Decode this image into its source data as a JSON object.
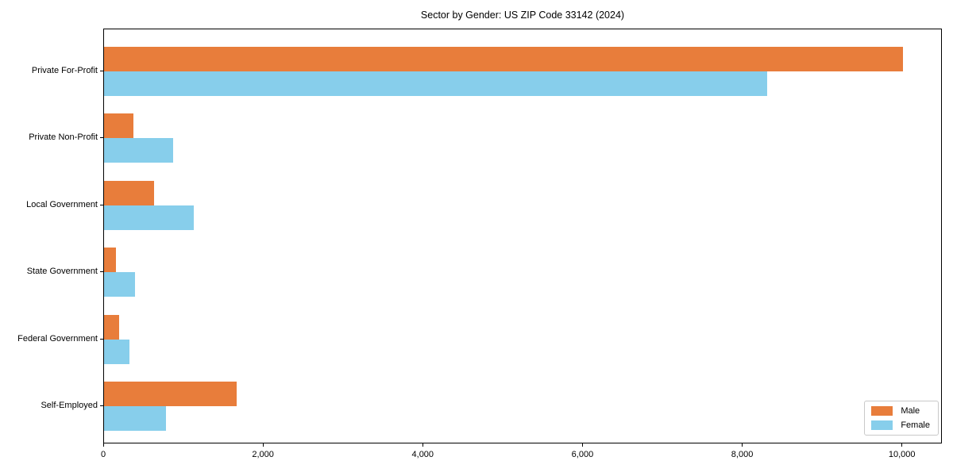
{
  "title": "Sector by Gender: US ZIP Code 33142 (2024)",
  "colors": {
    "male": "#e87d3b",
    "female": "#87ceeb",
    "frame": "#000000",
    "legend_border": "#c9c9c9",
    "background": "#ffffff"
  },
  "chart_data": {
    "type": "bar",
    "orientation": "horizontal",
    "title": "Sector by Gender: US ZIP Code 33142 (2024)",
    "categories": [
      "Private For-Profit",
      "Private Non-Profit",
      "Local Government",
      "State Government",
      "Federal Government",
      "Self-Employed"
    ],
    "series": [
      {
        "name": "Male",
        "color": "#e87d3b",
        "values": [
          10000,
          370,
          625,
          150,
          190,
          1665
        ]
      },
      {
        "name": "Female",
        "color": "#87ceeb",
        "values": [
          8300,
          865,
          1120,
          385,
          320,
          775
        ]
      }
    ],
    "xlabel": "",
    "ylabel": "",
    "xlim": [
      0,
      10500
    ],
    "xticks": [
      0,
      2000,
      4000,
      6000,
      8000,
      10000
    ],
    "xtick_labels": [
      "0",
      "2,000",
      "4,000",
      "6,000",
      "8,000",
      "10,000"
    ],
    "grid": false,
    "legend": {
      "position": "lower right",
      "entries": [
        "Male",
        "Female"
      ]
    }
  }
}
